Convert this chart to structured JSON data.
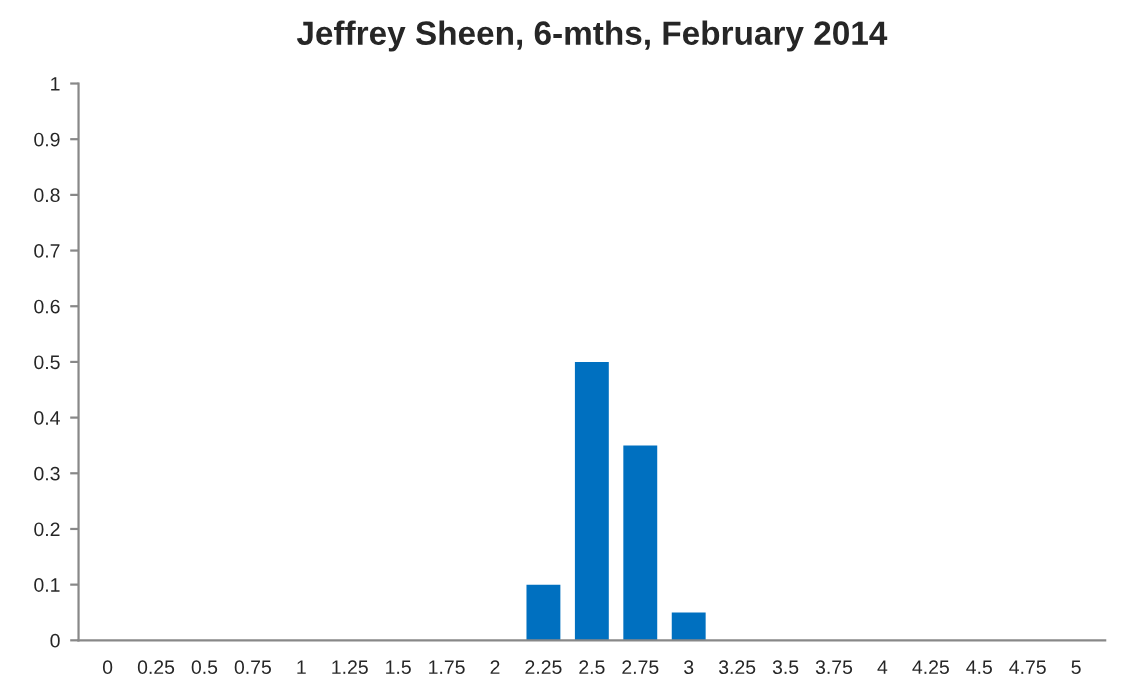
{
  "chart_data": {
    "type": "bar",
    "title": "Jeffrey Sheen, 6-mths, February 2014",
    "categories": [
      "0",
      "0.25",
      "0.5",
      "0.75",
      "1",
      "1.25",
      "1.5",
      "1.75",
      "2",
      "2.25",
      "2.5",
      "2.75",
      "3",
      "3.25",
      "3.5",
      "3.75",
      "4",
      "4.25",
      "4.5",
      "4.75",
      "5"
    ],
    "values": [
      0,
      0,
      0,
      0,
      0,
      0,
      0,
      0,
      0,
      0.1,
      0.5,
      0.35,
      0.05,
      0,
      0,
      0,
      0,
      0,
      0,
      0,
      0
    ],
    "color": "#0070c0",
    "ylim": [
      0,
      1
    ],
    "yticks": [
      0,
      0.1,
      0.2,
      0.3,
      0.4,
      0.5,
      0.6,
      0.7,
      0.8,
      0.9,
      1
    ],
    "grid": false
  }
}
